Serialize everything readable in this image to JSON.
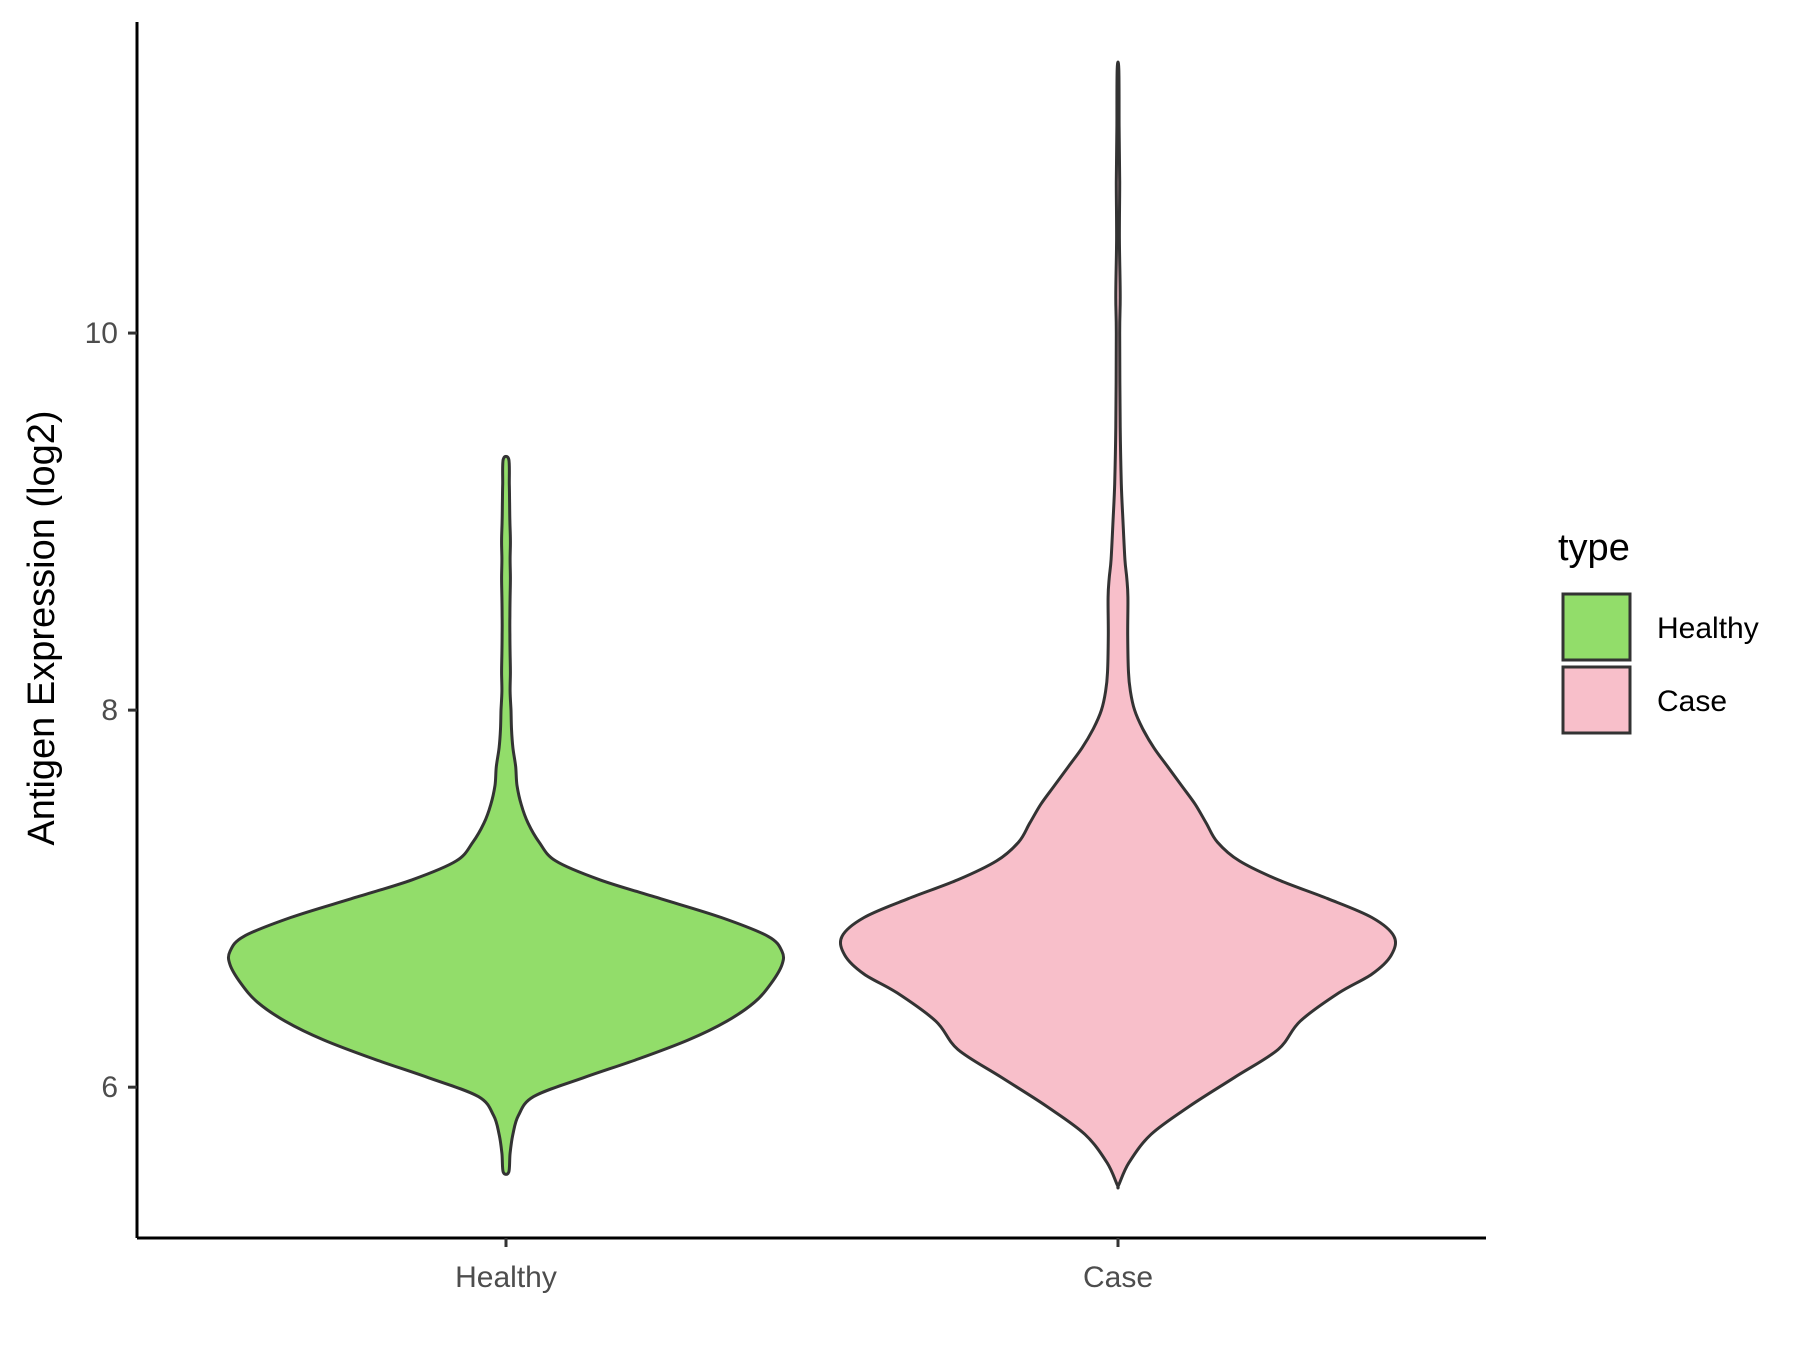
{
  "chart_data": {
    "type": "violin",
    "ylabel": "Antigen Expression (log2)",
    "xlabel": "",
    "categories": [
      "Healthy",
      "Case"
    ],
    "y_ticks": [
      6,
      8,
      10
    ],
    "ylim": [
      5.2,
      11.65
    ],
    "grid": false,
    "legend": {
      "title": "type",
      "placement": "right",
      "entries": [
        {
          "label": "Healthy",
          "color": "#92dd6a"
        },
        {
          "label": "Case",
          "color": "#f8bfca"
        }
      ]
    },
    "series": [
      {
        "category": "Healthy",
        "color": "#92dd6a",
        "min": 5.55,
        "max": 9.33,
        "density_profile": [
          [
            5.55,
            0.01
          ],
          [
            5.65,
            0.015
          ],
          [
            5.75,
            0.025
          ],
          [
            5.85,
            0.045
          ],
          [
            5.95,
            0.1
          ],
          [
            6.05,
            0.28
          ],
          [
            6.15,
            0.48
          ],
          [
            6.25,
            0.66
          ],
          [
            6.35,
            0.8
          ],
          [
            6.45,
            0.9
          ],
          [
            6.55,
            0.96
          ],
          [
            6.65,
            1.0
          ],
          [
            6.72,
            1.0
          ],
          [
            6.8,
            0.95
          ],
          [
            6.9,
            0.78
          ],
          [
            7.0,
            0.56
          ],
          [
            7.1,
            0.34
          ],
          [
            7.2,
            0.18
          ],
          [
            7.3,
            0.12
          ],
          [
            7.4,
            0.08
          ],
          [
            7.5,
            0.055
          ],
          [
            7.6,
            0.04
          ],
          [
            7.7,
            0.035
          ],
          [
            7.8,
            0.025
          ],
          [
            7.9,
            0.02
          ],
          [
            8.0,
            0.018
          ],
          [
            8.1,
            0.015
          ],
          [
            8.2,
            0.016
          ],
          [
            8.3,
            0.015
          ],
          [
            8.4,
            0.014
          ],
          [
            8.5,
            0.014
          ],
          [
            8.6,
            0.015
          ],
          [
            8.7,
            0.016
          ],
          [
            8.8,
            0.015
          ],
          [
            8.9,
            0.016
          ],
          [
            9.0,
            0.014
          ],
          [
            9.1,
            0.013
          ],
          [
            9.2,
            0.012
          ],
          [
            9.33,
            0.01
          ]
        ]
      },
      {
        "category": "Case",
        "color": "#f8bfca",
        "min": 5.48,
        "max": 11.4,
        "density_profile": [
          [
            5.48,
            0.002
          ],
          [
            5.6,
            0.04
          ],
          [
            5.75,
            0.12
          ],
          [
            5.9,
            0.26
          ],
          [
            6.05,
            0.42
          ],
          [
            6.2,
            0.58
          ],
          [
            6.35,
            0.66
          ],
          [
            6.5,
            0.8
          ],
          [
            6.6,
            0.92
          ],
          [
            6.7,
            0.99
          ],
          [
            6.8,
            1.0
          ],
          [
            6.9,
            0.92
          ],
          [
            7.0,
            0.76
          ],
          [
            7.1,
            0.58
          ],
          [
            7.2,
            0.44
          ],
          [
            7.3,
            0.36
          ],
          [
            7.4,
            0.32
          ],
          [
            7.5,
            0.28
          ],
          [
            7.6,
            0.23
          ],
          [
            7.7,
            0.18
          ],
          [
            7.8,
            0.13
          ],
          [
            7.9,
            0.09
          ],
          [
            8.0,
            0.06
          ],
          [
            8.1,
            0.045
          ],
          [
            8.2,
            0.038
          ],
          [
            8.4,
            0.035
          ],
          [
            8.6,
            0.036
          ],
          [
            8.7,
            0.032
          ],
          [
            8.8,
            0.025
          ],
          [
            9.0,
            0.018
          ],
          [
            9.2,
            0.012
          ],
          [
            9.5,
            0.008
          ],
          [
            10.0,
            0.006
          ],
          [
            10.2,
            0.008
          ],
          [
            10.5,
            0.005
          ],
          [
            10.8,
            0.006
          ],
          [
            11.1,
            0.004
          ],
          [
            11.4,
            0.003
          ]
        ]
      }
    ]
  }
}
